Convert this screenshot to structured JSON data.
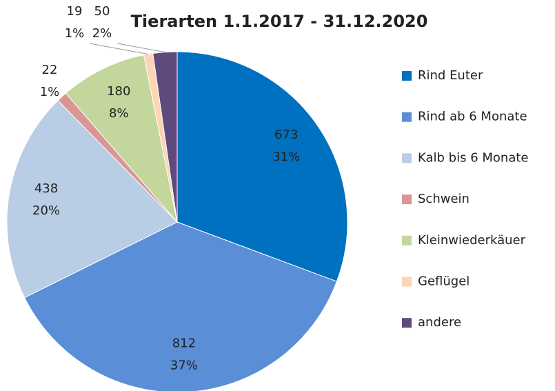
{
  "chart_data": {
    "type": "pie",
    "title": "Tierarten 1.1.2017 - 31.12.2020",
    "categories": [
      "Rind Euter",
      "Rind ab 6 Monate",
      "Kalb bis 6 Monate",
      "Schwein",
      "Kleinwiederkäuer",
      "Geflügel",
      "andere"
    ],
    "values": [
      673,
      812,
      438,
      22,
      180,
      19,
      50
    ],
    "percent_labels": [
      "31%",
      "37%",
      "20%",
      "1%",
      "8%",
      "1%",
      "2%"
    ],
    "colors": [
      "#0070c0",
      "#5a8ed6",
      "#b9cde5",
      "#d99694",
      "#c3d69b",
      "#fcd5b5",
      "#604a7b"
    ],
    "legend": "right"
  }
}
